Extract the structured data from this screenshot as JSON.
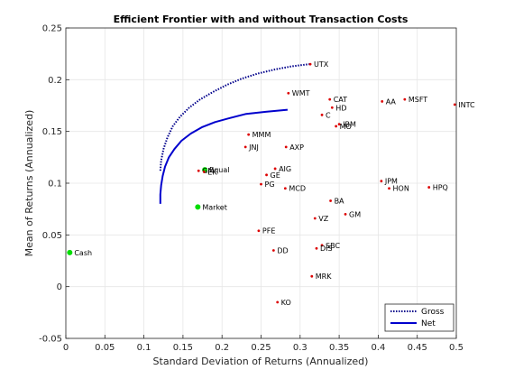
{
  "chart_data": {
    "type": "scatter",
    "title": "Efficient Frontier with and without Transaction Costs",
    "xlabel": "Standard Deviation of Returns (Annualized)",
    "ylabel": "Mean of Returns (Annualized)",
    "xlim": [
      0,
      0.5
    ],
    "ylim": [
      -0.05,
      0.25
    ],
    "xticks": [
      "0",
      "0.05",
      "0.1",
      "0.15",
      "0.2",
      "0.25",
      "0.3",
      "0.35",
      "0.4",
      "0.45",
      "0.5"
    ],
    "yticks": [
      "-0.05",
      "0",
      "0.05",
      "0.1",
      "0.15",
      "0.2",
      "0.25"
    ],
    "grid": true,
    "legend_position": "bottom-right",
    "colors": {
      "gross": "#00008b",
      "net": "#0000cd",
      "stock": "#dd0000",
      "special": "#00dd00"
    },
    "series": [
      {
        "name": "Gross",
        "style": "dotted",
        "x": [
          0.121,
          0.122,
          0.125,
          0.13,
          0.137,
          0.146,
          0.158,
          0.172,
          0.188,
          0.206,
          0.225,
          0.246,
          0.268,
          0.29,
          0.312
        ],
        "y": [
          0.112,
          0.122,
          0.133,
          0.144,
          0.155,
          0.164,
          0.173,
          0.181,
          0.188,
          0.195,
          0.201,
          0.206,
          0.21,
          0.213,
          0.215
        ]
      },
      {
        "name": "Net",
        "style": "solid",
        "x": [
          0.121,
          0.121,
          0.122,
          0.124,
          0.127,
          0.132,
          0.139,
          0.148,
          0.16,
          0.174,
          0.191,
          0.21,
          0.231,
          0.256,
          0.284
        ],
        "y": [
          0.08,
          0.089,
          0.098,
          0.107,
          0.116,
          0.125,
          0.133,
          0.141,
          0.148,
          0.154,
          0.159,
          0.163,
          0.167,
          0.169,
          0.171
        ]
      }
    ],
    "points": [
      {
        "label": "UTX",
        "x": 0.313,
        "y": 0.215,
        "marker": "stock"
      },
      {
        "label": "WMT",
        "x": 0.285,
        "y": 0.187,
        "marker": "stock"
      },
      {
        "label": "CAT",
        "x": 0.338,
        "y": 0.181,
        "marker": "stock"
      },
      {
        "label": "AA",
        "x": 0.405,
        "y": 0.179,
        "marker": "stock"
      },
      {
        "label": "MSFT",
        "x": 0.434,
        "y": 0.181,
        "marker": "stock"
      },
      {
        "label": "INTC",
        "x": 0.498,
        "y": 0.176,
        "marker": "stock"
      },
      {
        "label": "HD",
        "x": 0.341,
        "y": 0.173,
        "marker": "stock"
      },
      {
        "label": "C",
        "x": 0.328,
        "y": 0.166,
        "marker": "stock"
      },
      {
        "label": "IBM",
        "x": 0.35,
        "y": 0.157,
        "marker": "stock"
      },
      {
        "label": "MO",
        "x": 0.346,
        "y": 0.155,
        "marker": "stock"
      },
      {
        "label": "MMM",
        "x": 0.234,
        "y": 0.147,
        "marker": "stock"
      },
      {
        "label": "JNJ",
        "x": 0.23,
        "y": 0.135,
        "marker": "stock"
      },
      {
        "label": "AXP",
        "x": 0.282,
        "y": 0.135,
        "marker": "stock"
      },
      {
        "label": "Equal",
        "x": 0.178,
        "y": 0.113,
        "marker": "special"
      },
      {
        "label": "GM",
        "x": 0.17,
        "y": 0.112,
        "marker": "stock"
      },
      {
        "label": "EK",
        "x": 0.177,
        "y": 0.111,
        "marker": "stock"
      },
      {
        "label": "AIG",
        "x": 0.268,
        "y": 0.114,
        "marker": "stock"
      },
      {
        "label": "GE",
        "x": 0.257,
        "y": 0.108,
        "marker": "stock"
      },
      {
        "label": "PG",
        "x": 0.25,
        "y": 0.099,
        "marker": "stock"
      },
      {
        "label": "MCD",
        "x": 0.281,
        "y": 0.095,
        "marker": "stock"
      },
      {
        "label": "JPM",
        "x": 0.404,
        "y": 0.102,
        "marker": "stock"
      },
      {
        "label": "HON",
        "x": 0.414,
        "y": 0.095,
        "marker": "stock"
      },
      {
        "label": "HPQ",
        "x": 0.465,
        "y": 0.096,
        "marker": "stock"
      },
      {
        "label": "BA",
        "x": 0.339,
        "y": 0.083,
        "marker": "stock"
      },
      {
        "label": "Market",
        "x": 0.169,
        "y": 0.077,
        "marker": "special"
      },
      {
        "label": "GM",
        "x": 0.358,
        "y": 0.07,
        "marker": "stock"
      },
      {
        "label": "VZ",
        "x": 0.319,
        "y": 0.066,
        "marker": "stock"
      },
      {
        "label": "PFE",
        "x": 0.247,
        "y": 0.054,
        "marker": "stock"
      },
      {
        "label": "SBC",
        "x": 0.328,
        "y": 0.04,
        "marker": "stock"
      },
      {
        "label": "DIS",
        "x": 0.321,
        "y": 0.037,
        "marker": "stock"
      },
      {
        "label": "DD",
        "x": 0.266,
        "y": 0.035,
        "marker": "stock"
      },
      {
        "label": "Cash",
        "x": 0.005,
        "y": 0.033,
        "marker": "special"
      },
      {
        "label": "MRK",
        "x": 0.315,
        "y": 0.01,
        "marker": "stock"
      },
      {
        "label": "KO",
        "x": 0.271,
        "y": -0.015,
        "marker": "stock"
      }
    ]
  }
}
